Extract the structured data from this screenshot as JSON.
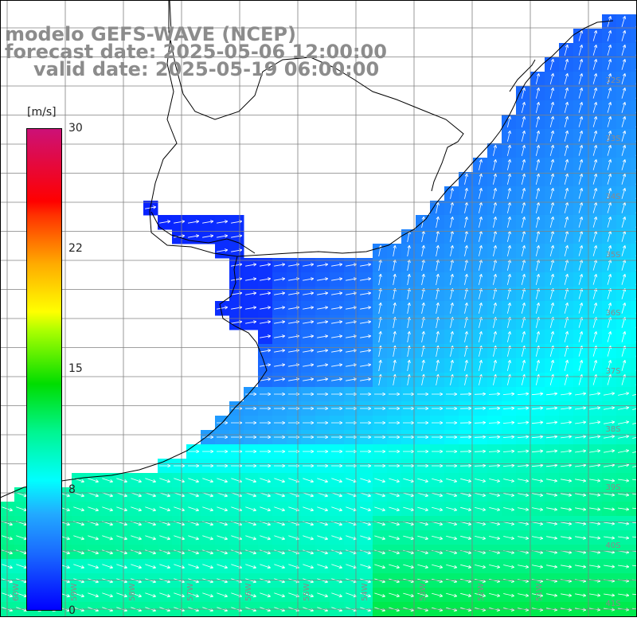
{
  "title": {
    "line1": "modelo GEFS-WAVE (NCEP)",
    "line2": "forecast date: 2025-05-06 12:00:00",
    "line3": "valid date: 2025-05-19 06:00:00"
  },
  "colorbar": {
    "unit": "[m/s]",
    "min": 0,
    "max": 30,
    "ticks": [
      "30",
      "22",
      "15",
      "8",
      "0"
    ],
    "tick_values": [
      30,
      22,
      15,
      8,
      0
    ],
    "colors": [
      "#0000ff",
      "#1a6cff",
      "#22aaff",
      "#00ffff",
      "#00f590",
      "#00dd00",
      "#aaff00",
      "#ffff00",
      "#ffaa00",
      "#ff3300",
      "#ff0000",
      "#cc1177"
    ]
  },
  "grid": {
    "lat_labels": [
      "32S",
      "33S",
      "34S",
      "35S",
      "36S",
      "37S",
      "38S",
      "39S",
      "40S",
      "41S"
    ],
    "lon_labels": [
      "60W",
      "59W",
      "58W",
      "57W",
      "56W",
      "55W",
      "54W",
      "53W",
      "52W",
      "51W"
    ]
  },
  "field": {
    "description_colors": {
      "land": "#ffffff",
      "coast": "#000000",
      "gridline": "#808080",
      "arrow": "#ffffff"
    }
  }
}
